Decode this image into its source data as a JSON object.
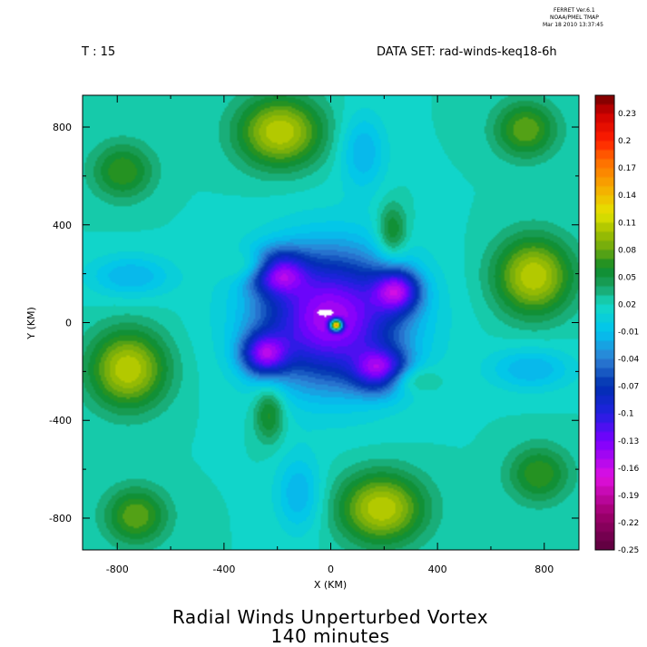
{
  "header": {
    "ferret_line1": "FERRET  Ver.6.1",
    "ferret_line2": "NOAA/PMEL TMAP",
    "ferret_line3": "Mar 18 2010 13:37:45",
    "time_label": "T : 15",
    "dataset_label": "DATA SET: rad-winds-keq18-6h"
  },
  "titles": {
    "line1": "Radial Winds Unperturbed Vortex",
    "line2": "140 minutes"
  },
  "chart_data": {
    "type": "heatmap",
    "title": "Radial Winds Unperturbed Vortex",
    "subtitle": "140 minutes",
    "xlabel": "X (KM)",
    "ylabel": "Y (KM)",
    "xlim": [
      -930,
      930
    ],
    "ylim": [
      -930,
      930
    ],
    "x_ticks": [
      -800,
      -400,
      0,
      400,
      800
    ],
    "y_ticks": [
      -800,
      -400,
      0,
      400,
      800
    ],
    "x_tick_labels": [
      "-800",
      "-400",
      "0",
      "400",
      "800"
    ],
    "y_tick_labels": [
      "-800",
      "-400",
      "0",
      "400",
      "800"
    ],
    "x_minor_ticks": [
      -600,
      -200,
      200,
      600
    ],
    "y_minor_ticks": [
      -600,
      -200,
      200,
      600
    ],
    "colorbar": {
      "range": [
        -0.25,
        0.25
      ],
      "step": 0.01,
      "labels": [
        "0.23",
        "0.2",
        "0.17",
        "0.14",
        "0.11",
        "0.08",
        "0.05",
        "0.02",
        "-0.01",
        "-0.04",
        "-0.07",
        "-0.1",
        "-0.13",
        "-0.16",
        "-0.19",
        "-0.22",
        "-0.25"
      ],
      "label_values": [
        0.23,
        0.2,
        0.17,
        0.14,
        0.11,
        0.08,
        0.05,
        0.02,
        -0.01,
        -0.04,
        -0.07,
        -0.1,
        -0.13,
        -0.16,
        -0.19,
        -0.22,
        -0.25
      ],
      "color_stops": [
        {
          "v": -0.25,
          "c": "#5a003c"
        },
        {
          "v": -0.21,
          "c": "#a0006e"
        },
        {
          "v": -0.17,
          "c": "#e010e0"
        },
        {
          "v": -0.13,
          "c": "#7a00ff"
        },
        {
          "v": -0.1,
          "c": "#2020e0"
        },
        {
          "v": -0.07,
          "c": "#0030b0"
        },
        {
          "v": -0.04,
          "c": "#2e7fd4"
        },
        {
          "v": -0.01,
          "c": "#00c4f0"
        },
        {
          "v": 0.02,
          "c": "#14d8c2"
        },
        {
          "v": 0.04,
          "c": "#1aa060"
        },
        {
          "v": 0.06,
          "c": "#0e8a28"
        },
        {
          "v": 0.08,
          "c": "#6aa810"
        },
        {
          "v": 0.1,
          "c": "#a2c000"
        },
        {
          "v": 0.12,
          "c": "#e4e400"
        },
        {
          "v": 0.15,
          "c": "#f7a800"
        },
        {
          "v": 0.18,
          "c": "#ff6800"
        },
        {
          "v": 0.2,
          "c": "#ff1e00"
        },
        {
          "v": 0.23,
          "c": "#cc0000"
        },
        {
          "v": 0.25,
          "c": "#700000"
        }
      ]
    },
    "field": {
      "background_value": 0.02,
      "features": [
        {
          "x": 0,
          "y": 20,
          "sx": 190,
          "sy": 190,
          "v": -0.17,
          "note": "central negative core"
        },
        {
          "x": -200,
          "y": 210,
          "sx": 70,
          "sy": 60,
          "v": -0.13
        },
        {
          "x": 190,
          "y": -200,
          "sx": 70,
          "sy": 60,
          "v": -0.13
        },
        {
          "x": 250,
          "y": 130,
          "sx": 60,
          "sy": 60,
          "v": -0.12
        },
        {
          "x": -250,
          "y": -130,
          "sx": 60,
          "sy": 60,
          "v": -0.12
        },
        {
          "x": -190,
          "y": 780,
          "sx": 110,
          "sy": 100,
          "v": 0.09
        },
        {
          "x": 190,
          "y": -760,
          "sx": 110,
          "sy": 100,
          "v": 0.09
        },
        {
          "x": 760,
          "y": 190,
          "sx": 100,
          "sy": 110,
          "v": 0.09
        },
        {
          "x": -760,
          "y": -190,
          "sx": 100,
          "sy": 110,
          "v": 0.09
        },
        {
          "x": -260,
          "y": 230,
          "sx": 80,
          "sy": 40,
          "v": 0.05
        },
        {
          "x": 260,
          "y": -230,
          "sx": 80,
          "sy": 40,
          "v": 0.05
        },
        {
          "x": 230,
          "y": 370,
          "sx": 40,
          "sy": 80,
          "v": 0.05
        },
        {
          "x": -230,
          "y": -370,
          "sx": 40,
          "sy": 80,
          "v": 0.05
        },
        {
          "x": 120,
          "y": 700,
          "sx": 60,
          "sy": 110,
          "v": -0.04
        },
        {
          "x": -120,
          "y": -700,
          "sx": 60,
          "sy": 110,
          "v": -0.04
        },
        {
          "x": -750,
          "y": 190,
          "sx": 110,
          "sy": 60,
          "v": -0.04
        },
        {
          "x": 750,
          "y": -190,
          "sx": 110,
          "sy": 60,
          "v": -0.04
        },
        {
          "x": -780,
          "y": 620,
          "sx": 80,
          "sy": 80,
          "v": 0.05
        },
        {
          "x": 780,
          "y": -620,
          "sx": 80,
          "sy": 80,
          "v": 0.05
        },
        {
          "x": 730,
          "y": 790,
          "sx": 80,
          "sy": 80,
          "v": 0.06
        },
        {
          "x": -730,
          "y": -790,
          "sx": 80,
          "sy": 80,
          "v": 0.06
        },
        {
          "x": 20,
          "y": -10,
          "sx": 16,
          "sy": 16,
          "v": 0.14,
          "note": "center spot"
        }
      ],
      "missing_region": {
        "x": -20,
        "y": 40,
        "note": "white patch near center"
      }
    }
  }
}
